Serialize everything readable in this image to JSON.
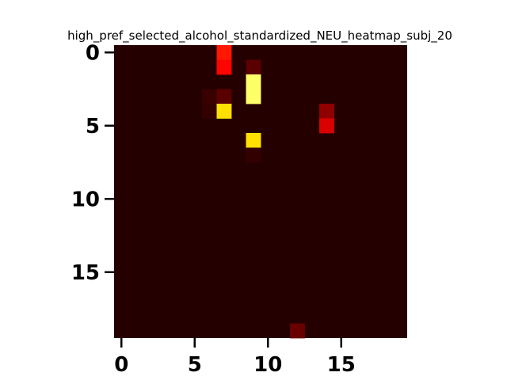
{
  "chart_data": {
    "type": "heatmap",
    "title": "high_pref_selected_alcohol_standardized_NEU_heatmap_subj_20",
    "xlabel": "",
    "ylabel": "",
    "rows": 20,
    "cols": 20,
    "xlim": [
      -0.5,
      19.5
    ],
    "ylim": [
      19.5,
      -0.5
    ],
    "y_inverted": true,
    "x_ticks": [
      0,
      5,
      10,
      15
    ],
    "y_ticks": [
      0,
      5,
      10,
      15
    ],
    "colormap": "hot",
    "background_value": 0.04,
    "grid": false,
    "legend": "none",
    "cells": [
      {
        "row": 0,
        "col": 7,
        "value": 0.4
      },
      {
        "row": 1,
        "col": 7,
        "value": 0.37
      },
      {
        "row": 1,
        "col": 9,
        "value": 0.12
      },
      {
        "row": 2,
        "col": 9,
        "value": 0.85
      },
      {
        "row": 3,
        "col": 6,
        "value": 0.07
      },
      {
        "row": 3,
        "col": 7,
        "value": 0.12
      },
      {
        "row": 3,
        "col": 9,
        "value": 0.85
      },
      {
        "row": 4,
        "col": 6,
        "value": 0.06
      },
      {
        "row": 4,
        "col": 7,
        "value": 0.7
      },
      {
        "row": 4,
        "col": 14,
        "value": 0.2
      },
      {
        "row": 5,
        "col": 14,
        "value": 0.31
      },
      {
        "row": 6,
        "col": 9,
        "value": 0.7
      },
      {
        "row": 7,
        "col": 9,
        "value": 0.06
      },
      {
        "row": 19,
        "col": 12,
        "value": 0.14
      }
    ]
  }
}
